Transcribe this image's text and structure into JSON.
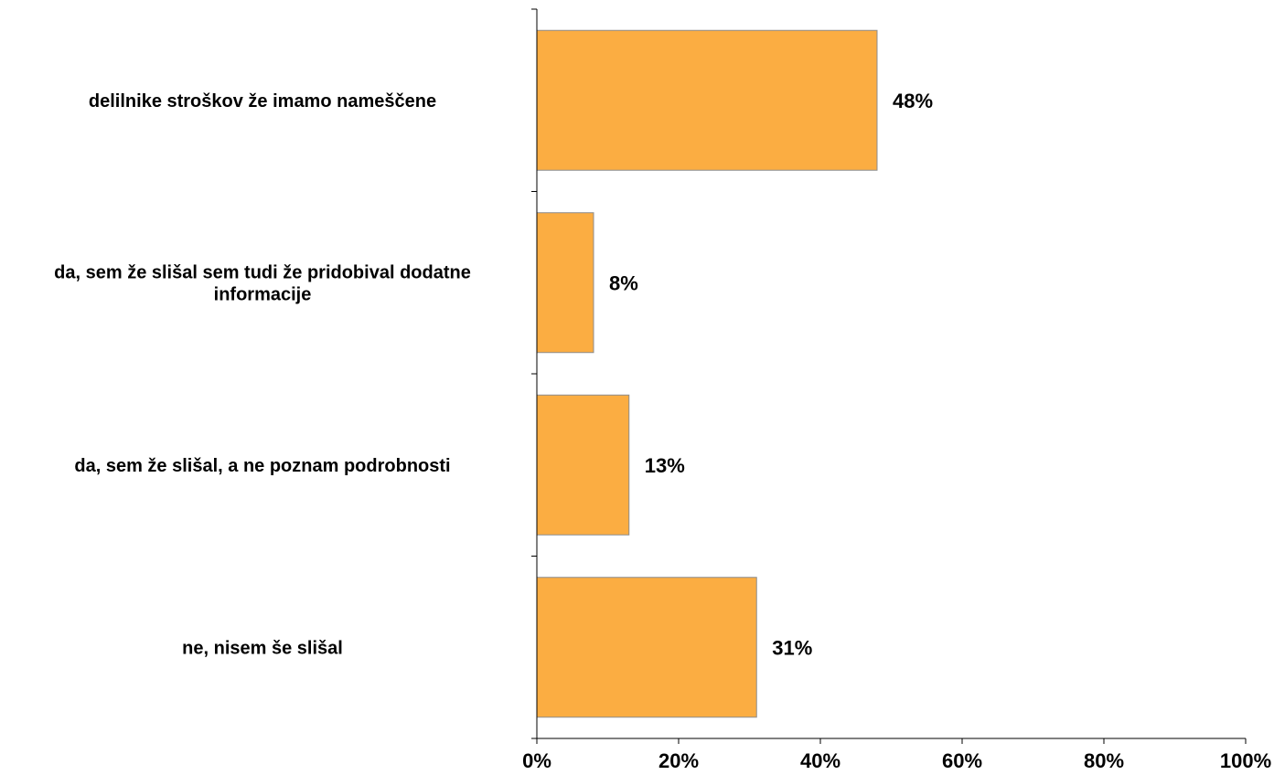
{
  "chart_data": {
    "type": "bar",
    "orientation": "horizontal",
    "title": "",
    "xlabel": "",
    "ylabel": "",
    "categories": [
      "delilnike stroškov že imamo nameščene",
      "da, sem že slišal sem tudi že pridobival dodatne informacije",
      "da, sem že slišal, a ne poznam podrobnosti",
      "ne, nisem še slišal"
    ],
    "category_lines": [
      [
        "delilnike stroškov že imamo nameščene"
      ],
      [
        "da, sem že slišal sem tudi že pridobival dodatne",
        "informacije"
      ],
      [
        "da, sem že slišal, a ne poznam podrobnosti"
      ],
      [
        "ne, nisem še slišal"
      ]
    ],
    "values": [
      48,
      8,
      13,
      31
    ],
    "value_labels": [
      "48%",
      "8%",
      "13%",
      "31%"
    ],
    "xlim": [
      0,
      100
    ],
    "x_ticks": [
      0,
      20,
      40,
      60,
      80,
      100
    ],
    "x_tick_labels": [
      "0%",
      "20%",
      "40%",
      "60%",
      "80%",
      "100%"
    ],
    "grid": false,
    "legend": "none",
    "bar_color": "#FBAD42",
    "bar_edge_color": "#8C8C8C"
  }
}
